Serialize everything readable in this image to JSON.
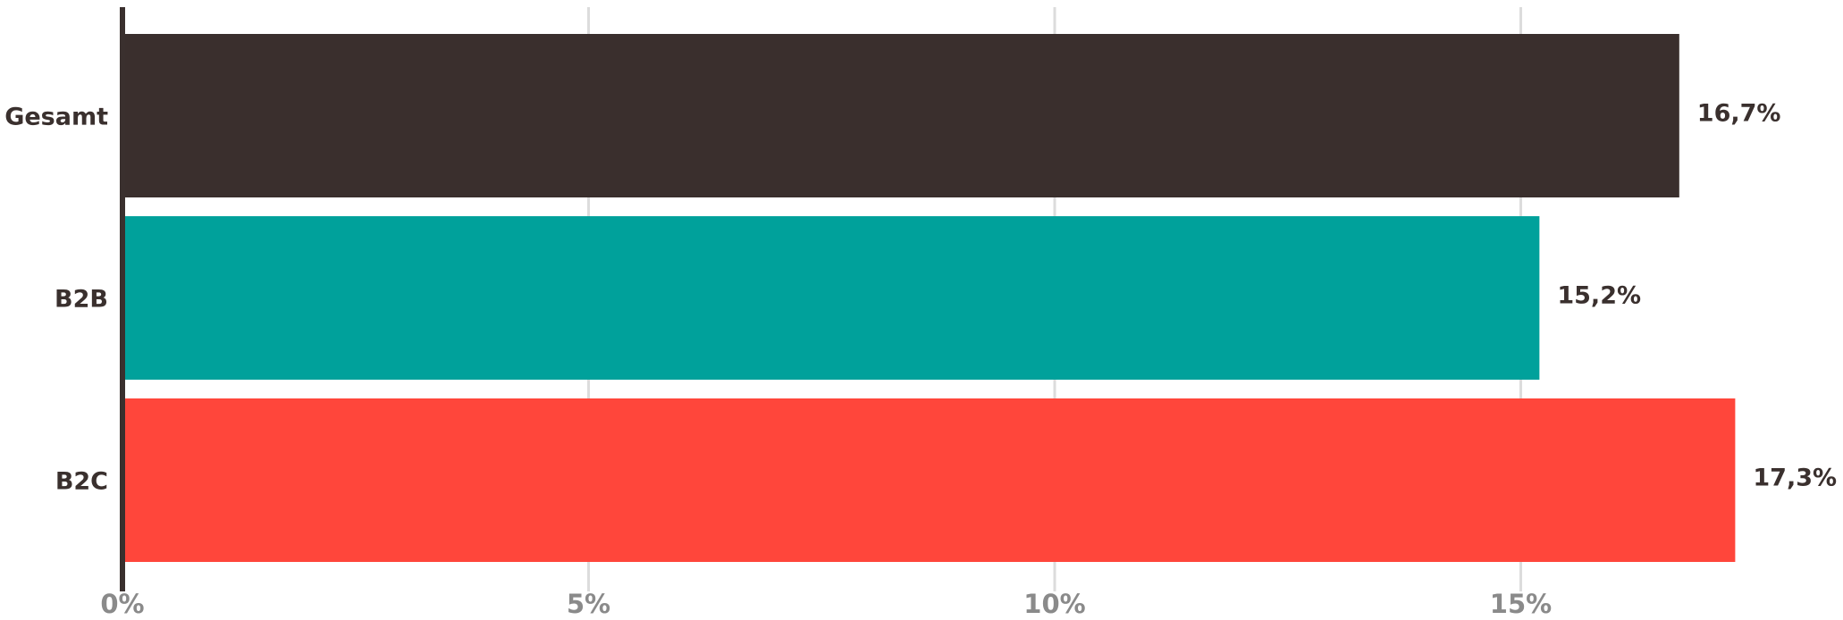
{
  "chart_data": {
    "type": "bar",
    "orientation": "horizontal",
    "categories": [
      "Gesamt",
      "B2B",
      "B2C"
    ],
    "values": [
      16.7,
      15.2,
      17.3
    ],
    "value_labels": [
      "16,7%",
      "15,2%",
      "17,3%"
    ],
    "colors": [
      "#3a2f2d",
      "#00a19b",
      "#ff463b"
    ],
    "xlim": [
      0,
      18
    ],
    "x_ticks": [
      0,
      5,
      10,
      15
    ],
    "x_tick_labels": [
      "0%",
      "5%",
      "10%",
      "15%"
    ],
    "grid": true,
    "legend": "none"
  }
}
